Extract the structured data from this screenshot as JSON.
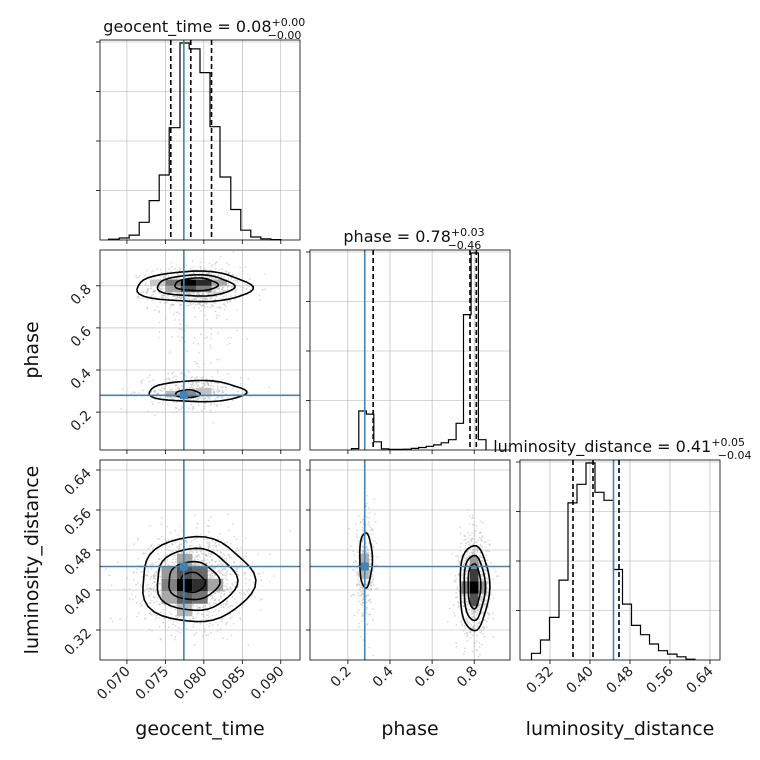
{
  "chart_data": {
    "type": "corner",
    "params": [
      {
        "name": "geocent_time",
        "axis_label": "geocent_time",
        "title": {
          "prefix": "geocent_time = 0.08",
          "plus": "+0.00",
          "minus": "−0.00"
        },
        "range": [
          0.0665,
          0.0925
        ],
        "ticks": [
          0.07,
          0.075,
          0.08,
          0.085,
          0.09
        ],
        "tick_labels": [
          "0.070",
          "0.075",
          "0.080",
          "0.085",
          "0.090"
        ],
        "truth": 0.0774,
        "quantiles": [
          0.0757,
          0.0783,
          0.081
        ],
        "hist": {
          "edges": [
            0.0676,
            0.069,
            0.0703,
            0.0716,
            0.0729,
            0.0742,
            0.0755,
            0.0769,
            0.0781,
            0.0795,
            0.0808,
            0.0821,
            0.0835,
            0.0848,
            0.0861,
            0.0874,
            0.0887,
            0.09
          ],
          "counts": [
            0.4,
            1.0,
            2.5,
            9.0,
            20.0,
            33.0,
            57.0,
            100.0,
            97.0,
            85.0,
            57.5,
            32.0,
            15.5,
            5.0,
            1.5,
            0.6,
            0.2
          ]
        }
      },
      {
        "name": "phase",
        "axis_label": "phase",
        "title": {
          "prefix": "phase = 0.78",
          "plus": "+0.03",
          "minus": "−0.46"
        },
        "range": [
          0.02,
          0.97
        ],
        "ticks": [
          0.2,
          0.4,
          0.6,
          0.8
        ],
        "tick_labels": [
          "0.2",
          "0.4",
          "0.6",
          "0.8"
        ],
        "truth": 0.28,
        "quantiles": [
          0.32,
          0.78,
          0.81
        ],
        "hist": {
          "edges": [
            0.217,
            0.252,
            0.288,
            0.323,
            0.359,
            0.394,
            0.43,
            0.465,
            0.501,
            0.536,
            0.572,
            0.607,
            0.643,
            0.678,
            0.714,
            0.749,
            0.785,
            0.82,
            0.856
          ],
          "counts": [
            0.7,
            19.0,
            17.5,
            4.0,
            0.6,
            0.3,
            0.3,
            0.4,
            0.8,
            1.2,
            1.8,
            2.5,
            3.5,
            5.0,
            13.0,
            66.0,
            96.0,
            5.0
          ]
        }
      },
      {
        "name": "luminosity_distance",
        "axis_label": "luminosity_distance",
        "title": {
          "prefix": "luminosity_distance = 0.41",
          "plus": "+0.05",
          "minus": "−0.04"
        },
        "range": [
          0.26,
          0.66
        ],
        "ticks": [
          0.32,
          0.4,
          0.48,
          0.56,
          0.64
        ],
        "tick_labels": [
          "0.32",
          "0.40",
          "0.48",
          "0.56",
          "0.64"
        ],
        "truth": 0.447,
        "quantiles": [
          0.366,
          0.406,
          0.458
        ],
        "hist": {
          "edges": [
            0.283,
            0.301,
            0.319,
            0.338,
            0.356,
            0.374,
            0.392,
            0.41,
            0.428,
            0.447,
            0.465,
            0.483,
            0.501,
            0.519,
            0.537,
            0.555,
            0.574,
            0.592,
            0.61
          ],
          "counts": [
            2.5,
            7.5,
            16.0,
            30.0,
            59.0,
            66.0,
            74.0,
            63.0,
            60.0,
            34.0,
            21.0,
            13.0,
            9.5,
            6.0,
            3.5,
            2.2,
            1.2,
            0.3
          ]
        }
      }
    ],
    "pairs": [
      {
        "x": "geocent_time",
        "y": "phase",
        "truth_point": [
          0.0774,
          0.28
        ],
        "scatter_clusters": [
          {
            "cx": 0.0789,
            "cy": 0.79,
            "sx": 0.003,
            "sy": 0.05,
            "n": 900
          },
          {
            "cx": 0.0789,
            "cy": 0.3,
            "sx": 0.003,
            "sy": 0.04,
            "n": 380
          },
          {
            "cx": 0.0789,
            "cy": 0.55,
            "sx": 0.003,
            "sy": 0.15,
            "n": 80
          }
        ],
        "density_cells": [
          {
            "x": 0.078,
            "y": 0.815,
            "w": 0.002,
            "h": 0.03,
            "shade": 0.0
          },
          {
            "x": 0.08,
            "y": 0.815,
            "w": 0.002,
            "h": 0.03,
            "shade": 0.18
          },
          {
            "x": 0.076,
            "y": 0.815,
            "w": 0.002,
            "h": 0.03,
            "shade": 0.5
          },
          {
            "x": 0.078,
            "y": 0.785,
            "w": 0.002,
            "h": 0.03,
            "shade": 0.35
          },
          {
            "x": 0.08,
            "y": 0.785,
            "w": 0.002,
            "h": 0.03,
            "shade": 0.55
          },
          {
            "x": 0.076,
            "y": 0.785,
            "w": 0.002,
            "h": 0.03,
            "shade": 0.7
          },
          {
            "x": 0.082,
            "y": 0.815,
            "w": 0.002,
            "h": 0.03,
            "shade": 0.72
          },
          {
            "x": 0.074,
            "y": 0.815,
            "w": 0.002,
            "h": 0.03,
            "shade": 0.85
          },
          {
            "x": 0.078,
            "y": 0.285,
            "w": 0.002,
            "h": 0.03,
            "shade": 0.6
          },
          {
            "x": 0.076,
            "y": 0.285,
            "w": 0.002,
            "h": 0.03,
            "shade": 0.78
          },
          {
            "x": 0.08,
            "y": 0.3,
            "w": 0.002,
            "h": 0.03,
            "shade": 0.82
          }
        ],
        "contours": [
          {
            "cx": 0.0787,
            "cy": 0.795,
            "rx": 0.0075,
            "ry": 0.072
          },
          {
            "cx": 0.0789,
            "cy": 0.8,
            "rx": 0.005,
            "ry": 0.05
          },
          {
            "cx": 0.079,
            "cy": 0.806,
            "rx": 0.0028,
            "ry": 0.03
          },
          {
            "cx": 0.0791,
            "cy": 0.298,
            "rx": 0.0063,
            "ry": 0.05
          },
          {
            "cx": 0.0779,
            "cy": 0.287,
            "rx": 0.0016,
            "ry": 0.018
          }
        ]
      },
      {
        "x": "geocent_time",
        "y": "luminosity_distance",
        "truth_point": [
          0.0774,
          0.447
        ],
        "scatter_clusters": [
          {
            "cx": 0.0785,
            "cy": 0.42,
            "sx": 0.0035,
            "sy": 0.045,
            "n": 1300
          }
        ],
        "density_cells": [
          {
            "x": 0.0775,
            "y": 0.41,
            "w": 0.002,
            "h": 0.025,
            "shade": 0.0
          },
          {
            "x": 0.0795,
            "y": 0.41,
            "w": 0.002,
            "h": 0.025,
            "shade": 0.2
          },
          {
            "x": 0.0775,
            "y": 0.435,
            "w": 0.002,
            "h": 0.025,
            "shade": 0.35
          },
          {
            "x": 0.0795,
            "y": 0.435,
            "w": 0.002,
            "h": 0.025,
            "shade": 0.45
          },
          {
            "x": 0.0775,
            "y": 0.385,
            "w": 0.002,
            "h": 0.025,
            "shade": 0.4
          },
          {
            "x": 0.0755,
            "y": 0.41,
            "w": 0.002,
            "h": 0.025,
            "shade": 0.55
          },
          {
            "x": 0.0795,
            "y": 0.385,
            "w": 0.002,
            "h": 0.025,
            "shade": 0.5
          },
          {
            "x": 0.0755,
            "y": 0.435,
            "w": 0.002,
            "h": 0.025,
            "shade": 0.65
          },
          {
            "x": 0.0815,
            "y": 0.41,
            "w": 0.002,
            "h": 0.025,
            "shade": 0.7
          },
          {
            "x": 0.0755,
            "y": 0.385,
            "w": 0.002,
            "h": 0.025,
            "shade": 0.72
          },
          {
            "x": 0.0775,
            "y": 0.46,
            "w": 0.002,
            "h": 0.025,
            "shade": 0.7
          },
          {
            "x": 0.0775,
            "y": 0.36,
            "w": 0.002,
            "h": 0.025,
            "shade": 0.78
          }
        ],
        "contours": [
          {
            "cx": 0.079,
            "cy": 0.42,
            "rx": 0.0073,
            "ry": 0.085
          },
          {
            "cx": 0.0789,
            "cy": 0.42,
            "rx": 0.0052,
            "ry": 0.062
          },
          {
            "cx": 0.0786,
            "cy": 0.418,
            "rx": 0.0033,
            "ry": 0.038
          },
          {
            "cx": 0.0785,
            "cy": 0.415,
            "rx": 0.0016,
            "ry": 0.02
          }
        ]
      },
      {
        "x": "phase",
        "y": "luminosity_distance",
        "truth_point": [
          0.28,
          0.447
        ],
        "scatter_clusters": [
          {
            "cx": 0.28,
            "cy": 0.44,
            "sx": 0.025,
            "sy": 0.05,
            "n": 380
          },
          {
            "cx": 0.8,
            "cy": 0.41,
            "sx": 0.035,
            "sy": 0.05,
            "n": 950
          }
        ],
        "density_cells": [
          {
            "x": 0.8,
            "y": 0.405,
            "w": 0.04,
            "h": 0.025,
            "shade": 0.0
          },
          {
            "x": 0.8,
            "y": 0.43,
            "w": 0.04,
            "h": 0.025,
            "shade": 0.25
          },
          {
            "x": 0.8,
            "y": 0.38,
            "w": 0.04,
            "h": 0.025,
            "shade": 0.35
          },
          {
            "x": 0.76,
            "y": 0.405,
            "w": 0.04,
            "h": 0.025,
            "shade": 0.55
          },
          {
            "x": 0.84,
            "y": 0.405,
            "w": 0.04,
            "h": 0.025,
            "shade": 0.65
          },
          {
            "x": 0.8,
            "y": 0.455,
            "w": 0.04,
            "h": 0.025,
            "shade": 0.65
          },
          {
            "x": 0.28,
            "y": 0.46,
            "w": 0.04,
            "h": 0.025,
            "shade": 0.75
          },
          {
            "x": 0.28,
            "y": 0.435,
            "w": 0.04,
            "h": 0.025,
            "shade": 0.78
          }
        ],
        "contours": [
          {
            "cx": 0.8,
            "cy": 0.405,
            "rx": 0.07,
            "ry": 0.085
          },
          {
            "cx": 0.8,
            "cy": 0.405,
            "rx": 0.05,
            "ry": 0.065
          },
          {
            "cx": 0.8,
            "cy": 0.408,
            "rx": 0.03,
            "ry": 0.045
          },
          {
            "cx": 0.285,
            "cy": 0.46,
            "rx": 0.03,
            "ry": 0.055
          }
        ]
      }
    ],
    "colors": {
      "truth": "#4682b4",
      "hist": "#000000",
      "quantile": "#000000",
      "contour": "#000000",
      "grid": "#b0b0b0",
      "scatter": "#bbbbbb"
    },
    "grid": true
  }
}
